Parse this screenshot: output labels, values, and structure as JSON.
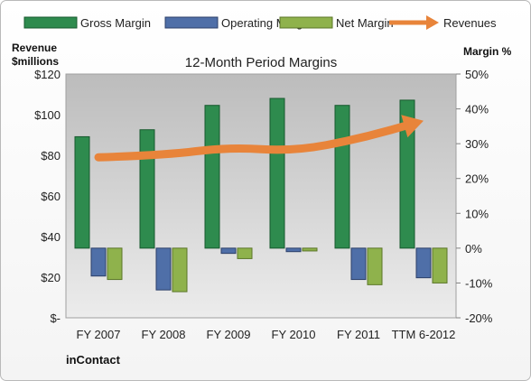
{
  "chart_data": {
    "type": "bar",
    "title": "12-Month Period Margins",
    "categories": [
      "FY 2007",
      "FY 2008",
      "FY 2009",
      "FY 2010",
      "FY 2011",
      "TTM 6-2012"
    ],
    "series": [
      {
        "name": "Gross Margin",
        "type": "bar",
        "axis": "right",
        "unit": "%",
        "values": [
          32,
          34,
          41,
          43,
          41,
          42.5
        ]
      },
      {
        "name": "Operating Margin",
        "type": "bar",
        "axis": "right",
        "unit": "%",
        "values": [
          -8,
          -12,
          -1.5,
          -1,
          -9,
          -8.5
        ]
      },
      {
        "name": "Net Margin",
        "type": "bar",
        "axis": "right",
        "unit": "%",
        "values": [
          -9,
          -12.5,
          -3,
          -0.8,
          -10.5,
          -10
        ]
      },
      {
        "name": "Revenues",
        "type": "line",
        "axis": "left",
        "unit": "$millions",
        "values": [
          79,
          80,
          84,
          82,
          88,
          97
        ]
      }
    ],
    "left_axis": {
      "label_line1": "Revenue",
      "label_line2": "$millions",
      "ylim": [
        0,
        120
      ],
      "ticks": [
        "$-",
        "$20",
        "$40",
        "$60",
        "$80",
        "$100",
        "$120"
      ]
    },
    "right_axis": {
      "label": "Margin %",
      "ylim": [
        -20,
        50
      ],
      "ticks": [
        "-20%",
        "-10%",
        "0%",
        "10%",
        "20%",
        "30%",
        "40%",
        "50%"
      ]
    },
    "legend_position": "top",
    "grid": false,
    "footer": "inContact",
    "colors": {
      "gross": "#2e8b4e",
      "gross_edge": "#17592e",
      "operating": "#4f6fa8",
      "operating_edge": "#2c3f69",
      "net": "#8fb24c",
      "net_edge": "#5b7628",
      "revenue": "#e8843a",
      "plot_top": "#bcbcbc",
      "plot_bottom": "#ececec"
    }
  }
}
